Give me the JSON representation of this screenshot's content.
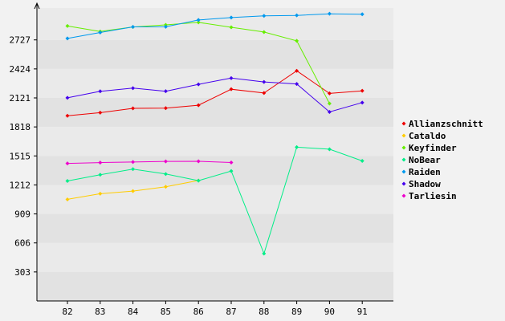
{
  "chart_data": {
    "type": "line",
    "title": "",
    "xlabel": "",
    "ylabel": "",
    "x": [
      82,
      83,
      84,
      85,
      86,
      87,
      88,
      89,
      90,
      91
    ],
    "y_ticks": [
      303,
      606,
      909,
      1212,
      1515,
      1818,
      2121,
      2424,
      2727
    ],
    "ylim": [
      0,
      3060
    ],
    "grid": "alternating horizontal bands",
    "legend_position": "right",
    "series": [
      {
        "name": "Allianzschnitt",
        "color": "#ee0000",
        "values": [
          1934,
          1967,
          2012,
          2014,
          2045,
          2212,
          2172,
          2404,
          2168,
          2195
        ]
      },
      {
        "name": "Cataldo",
        "color": "#ffcc00",
        "values": [
          1061,
          1120,
          1148,
          1193,
          1258,
          null,
          null,
          null,
          null,
          null
        ]
      },
      {
        "name": "Keyfinder",
        "color": "#66ee00",
        "values": [
          2872,
          2815,
          2862,
          2884,
          2910,
          2859,
          2809,
          2717,
          2062,
          null
        ]
      },
      {
        "name": "NoBear",
        "color": "#00ee88",
        "values": [
          1253,
          1318,
          1377,
          1326,
          1257,
          1357,
          495,
          1606,
          1585,
          1463
        ]
      },
      {
        "name": "Raiden",
        "color": "#0099ee",
        "values": [
          2742,
          2804,
          2863,
          2864,
          2935,
          2960,
          2978,
          2983,
          3000,
          2995
        ]
      },
      {
        "name": "Shadow",
        "color": "#4400ee",
        "values": [
          2122,
          2190,
          2223,
          2191,
          2263,
          2328,
          2288,
          2267,
          1974,
          2072
        ]
      },
      {
        "name": "Tarliesin",
        "color": "#ee00cc",
        "values": [
          1437,
          1445,
          1451,
          1458,
          1459,
          1446,
          null,
          null,
          null,
          null
        ]
      }
    ]
  }
}
